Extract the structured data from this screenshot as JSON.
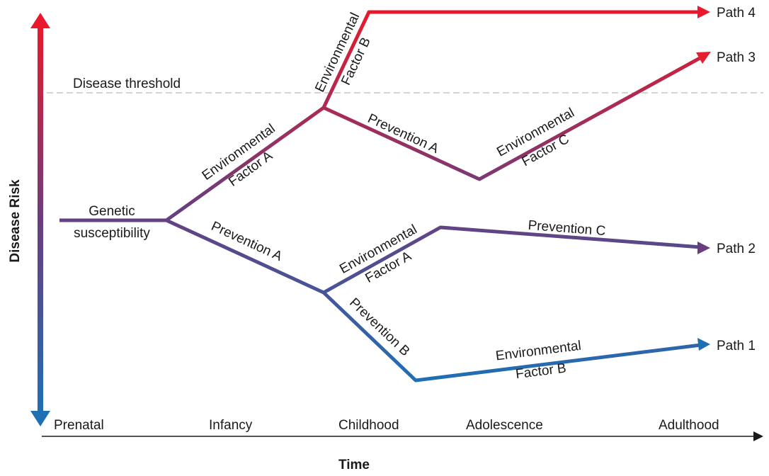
{
  "axes": {
    "y_title": "Disease Risk",
    "x_title": "Time"
  },
  "threshold_label": "Disease threshold",
  "stages": [
    "Prenatal",
    "Infancy",
    "Childhood",
    "Adolescence",
    "Adulthood"
  ],
  "start_label": [
    "Genetic",
    "susceptibility"
  ],
  "segment_labels": {
    "env_a_upper": [
      "Environmental",
      "Factor A"
    ],
    "env_b_upper": [
      "Environmental",
      "Factor B"
    ],
    "prevention_a_upper": "Prevention A",
    "env_c": [
      "Environmental",
      "Factor C"
    ],
    "prevention_a_lower": "Prevention A",
    "env_a_lower": [
      "Environmental",
      "Factor A"
    ],
    "prevention_c": "Prevention C",
    "prevention_b": "Prevention B",
    "env_b_lower": [
      "Environmental",
      "Factor B"
    ]
  },
  "paths": [
    "Path 4",
    "Path 3",
    "Path 2",
    "Path 1"
  ],
  "colors": {
    "high_risk": "#e8192c",
    "mid_risk": "#6b3d7d",
    "low_risk": "#1f6fb5",
    "threshold": "#bbbbbb",
    "axis": "#1a1a1a"
  }
}
